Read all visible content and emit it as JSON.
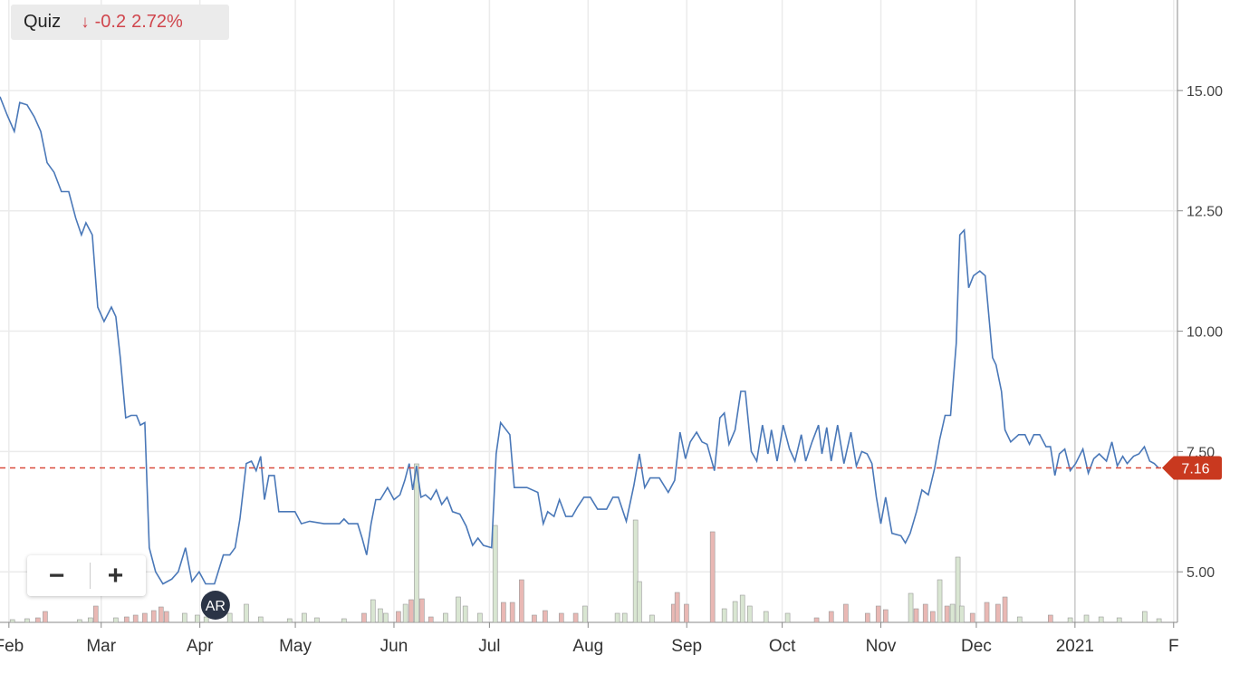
{
  "header": {
    "symbol": "Quiz",
    "change": "-0.2",
    "change_pct": "2.72%"
  },
  "zoom_controls": {
    "out": "−",
    "in": "+"
  },
  "chart_data": {
    "type": "line",
    "color": "#4a78b8",
    "grid": true,
    "xlim": [
      -2.8,
      367.2
    ],
    "xticks": [
      {
        "value": 0,
        "label": "Feb"
      },
      {
        "value": 29,
        "label": "Mar"
      },
      {
        "value": 60,
        "label": "Apr"
      },
      {
        "value": 90,
        "label": "May"
      },
      {
        "value": 121,
        "label": "Jun"
      },
      {
        "value": 151,
        "label": "Jul"
      },
      {
        "value": 182,
        "label": "Aug"
      },
      {
        "value": 213,
        "label": "Sep"
      },
      {
        "value": 243,
        "label": "Oct"
      },
      {
        "value": 274,
        "label": "Nov"
      },
      {
        "value": 304,
        "label": "Dec"
      },
      {
        "value": 335,
        "label": "2021"
      },
      {
        "value": 366,
        "label": "F"
      }
    ],
    "ylim": [
      3.95,
      16.88
    ],
    "yticks": [
      {
        "value": 5,
        "label": "5.00"
      },
      {
        "value": 7.5,
        "label": "7.50"
      },
      {
        "value": 10,
        "label": "10.00"
      },
      {
        "value": 12.5,
        "label": "12.50"
      },
      {
        "value": 15,
        "label": "15.00"
      }
    ],
    "x": [
      -2.8,
      -0.6,
      1.7,
      3.4,
      5.7,
      8,
      10,
      12,
      14.2,
      16.5,
      18.8,
      21,
      22.8,
      24.2,
      26.2,
      27.9,
      29.9,
      32.2,
      33.6,
      35,
      36.7,
      38.4,
      40.1,
      41.3,
      42.7,
      44.1,
      46.1,
      48.4,
      51.2,
      53.2,
      55.5,
      57.5,
      59.8,
      61.8,
      64.6,
      67.4,
      69.4,
      71.1,
      72.6,
      74.6,
      76.2,
      77.7,
      79.1,
      80.3,
      81.7,
      83.4,
      84.8,
      89.9,
      91.9,
      94.5,
      99,
      103.9,
      105.3,
      106.7,
      109.6,
      111,
      112.4,
      113.8,
      115.3,
      116.7,
      119,
      121,
      122.9,
      124.4,
      125.8,
      126.9,
      128.1,
      129.5,
      130.9,
      132.6,
      134.3,
      136,
      137.7,
      139.4,
      141.7,
      143.7,
      145.7,
      147.4,
      149.1,
      151.7,
      153.1,
      154.5,
      157.4,
      158.8,
      162.8,
      166.2,
      167.9,
      169.3,
      171.3,
      173,
      175,
      177,
      178.7,
      180.7,
      182.7,
      185,
      187.8,
      189.8,
      191.5,
      194,
      196.4,
      198.1,
      199.8,
      201.5,
      204.4,
      207.2,
      209.2,
      210.9,
      212.6,
      214.1,
      216.1,
      217.8,
      219.4,
      221.7,
      223.4,
      224.8,
      226.3,
      228.2,
      230,
      231.4,
      233.3,
      235,
      236.8,
      238.5,
      239.6,
      241.4,
      243.3,
      245.3,
      247,
      249,
      250.4,
      252.4,
      254.4,
      255.5,
      257,
      258.4,
      260.4,
      262.4,
      264.6,
      266.3,
      268,
      269.7,
      271.2,
      272.6,
      274,
      275.5,
      277.5,
      280.3,
      281.7,
      283.2,
      285.2,
      286.9,
      288.9,
      290.9,
      292.5,
      294.2,
      295.9,
      297.7,
      298.8,
      300.2,
      301.6,
      303.1,
      305.1,
      306.8,
      309.1,
      310.2,
      311.9,
      313,
      314.8,
      317.3,
      319.3,
      320.7,
      322.1,
      323.9,
      325.9,
      327.3,
      328.7,
      330.1,
      331.8,
      333.5,
      335.2,
      337.5,
      339.2,
      340.9,
      342.6,
      344.9,
      346.6,
      348.3,
      350,
      351.4,
      353.4,
      355.1,
      356.8,
      358.5,
      359.9,
      361.4
    ],
    "values": [
      14.87,
      14.5,
      14.15,
      14.75,
      14.7,
      14.45,
      14.15,
      13.5,
      13.3,
      12.9,
      12.9,
      12.35,
      12.0,
      12.25,
      12.0,
      10.5,
      10.2,
      10.5,
      10.3,
      9.45,
      8.2,
      8.25,
      8.25,
      8.05,
      8.1,
      5.5,
      5.0,
      4.75,
      4.85,
      5.0,
      5.5,
      4.8,
      5.0,
      4.75,
      4.75,
      5.35,
      5.35,
      5.5,
      6.1,
      7.25,
      7.3,
      7.1,
      7.4,
      6.5,
      7.0,
      7.0,
      6.25,
      6.25,
      6.0,
      6.05,
      6.0,
      6.0,
      6.1,
      6.0,
      6.0,
      5.7,
      5.35,
      6.0,
      6.5,
      6.5,
      6.75,
      6.5,
      6.6,
      6.9,
      7.25,
      6.7,
      7.2,
      6.55,
      6.6,
      6.5,
      6.7,
      6.4,
      6.55,
      6.25,
      6.2,
      5.95,
      5.55,
      5.7,
      5.55,
      5.5,
      7.45,
      8.1,
      7.85,
      6.75,
      6.75,
      6.65,
      6.0,
      6.25,
      6.15,
      6.5,
      6.15,
      6.15,
      6.35,
      6.55,
      6.55,
      6.3,
      6.3,
      6.55,
      6.55,
      6.05,
      6.8,
      7.45,
      6.75,
      6.95,
      6.95,
      6.65,
      6.9,
      7.9,
      7.35,
      7.7,
      7.9,
      7.7,
      7.65,
      7.1,
      8.2,
      8.3,
      7.65,
      7.95,
      8.75,
      8.75,
      7.5,
      7.3,
      8.05,
      7.45,
      7.95,
      7.3,
      8.05,
      7.55,
      7.3,
      7.85,
      7.3,
      7.7,
      8.05,
      7.45,
      8.0,
      7.3,
      8.05,
      7.25,
      7.9,
      7.2,
      7.5,
      7.45,
      7.25,
      6.55,
      6.0,
      6.55,
      5.8,
      5.75,
      5.6,
      5.8,
      6.25,
      6.7,
      6.6,
      7.15,
      7.75,
      8.25,
      8.25,
      9.75,
      12.0,
      12.1,
      10.9,
      11.15,
      11.25,
      11.15,
      9.45,
      9.3,
      8.75,
      7.95,
      7.7,
      7.85,
      7.85,
      7.65,
      7.85,
      7.85,
      7.6,
      7.6,
      7.0,
      7.45,
      7.55,
      7.1,
      7.25,
      7.55,
      7.05,
      7.35,
      7.45,
      7.3,
      7.7,
      7.2,
      7.4,
      7.25,
      7.4,
      7.45,
      7.6,
      7.3,
      7.25,
      7.15
    ],
    "y2lim": [
      0,
      68.7
    ],
    "volume": {
      "axis": "y2",
      "x": [
        1.1,
        5.7,
        9.1,
        11.4,
        22.2,
        25.6,
        27.3,
        33.6,
        37,
        39.8,
        42.7,
        45.5,
        47.8,
        49.5,
        55.2,
        59.2,
        62,
        69.4,
        74.6,
        79.1,
        88.2,
        92.8,
        96.8,
        105.3,
        111.6,
        114.4,
        116.7,
        118.4,
        122.4,
        124.6,
        126.4,
        128.1,
        129.8,
        132.6,
        137.2,
        141.2,
        143.4,
        148,
        152.8,
        155.4,
        158.2,
        161.1,
        165.1,
        168.5,
        173.6,
        178.1,
        181,
        191.2,
        193.5,
        196.9,
        198.1,
        202.1,
        208.9,
        210,
        212.9,
        221.1,
        224.8,
        228.2,
        230.5,
        232.8,
        237.9,
        244.7,
        253.8,
        258.4,
        263,
        269.8,
        273.2,
        275.5,
        283.4,
        285.1,
        288,
        290.3,
        292.5,
        294.8,
        296.5,
        298.2,
        299.4,
        302.8,
        307.3,
        310.8,
        313,
        317.6,
        327.3,
        333.5,
        338.6,
        343.2,
        348.9,
        356.9,
        361.4
      ],
      "values": [
        0.3,
        0.4,
        0.5,
        1.2,
        0.3,
        0.5,
        1.8,
        0.5,
        0.6,
        0.8,
        1.0,
        1.3,
        1.7,
        1.2,
        1.0,
        0.8,
        0.6,
        1.0,
        2.0,
        0.6,
        0.4,
        1.0,
        0.5,
        0.4,
        1.0,
        2.5,
        1.5,
        1.0,
        1.2,
        2.0,
        2.5,
        17.5,
        2.6,
        0.6,
        1.0,
        2.8,
        1.8,
        1.0,
        10.7,
        2.2,
        2.2,
        4.7,
        0.8,
        1.3,
        1.0,
        1.0,
        1.8,
        1.0,
        1.0,
        11.3,
        4.5,
        0.8,
        2.0,
        3.3,
        2.0,
        10.0,
        1.5,
        2.3,
        3.0,
        1.8,
        1.2,
        1.0,
        0.5,
        1.2,
        2.0,
        1.0,
        1.8,
        1.4,
        3.2,
        1.5,
        2.0,
        1.2,
        4.7,
        1.8,
        2.0,
        7.2,
        1.8,
        1.0,
        2.2,
        2.0,
        2.8,
        0.6,
        0.8,
        0.5,
        0.8,
        0.6,
        0.5,
        1.2,
        0.4
      ],
      "colors": [
        "#d9e6d2",
        "#d9e6d2",
        "#e9b8b4",
        "#e9b8b4",
        "#d9e6d2",
        "#d9e6d2",
        "#e9b8b4",
        "#d9e6d2",
        "#e9b8b4",
        "#e9b8b4",
        "#e9b8b4",
        "#e9b8b4",
        "#e9b8b4",
        "#e9b8b4",
        "#d9e6d2",
        "#d9e6d2",
        "#d9e6d2",
        "#d9e6d2",
        "#d9e6d2",
        "#d9e6d2",
        "#d9e6d2",
        "#d9e6d2",
        "#d9e6d2",
        "#d9e6d2",
        "#e9b8b4",
        "#d9e6d2",
        "#d9e6d2",
        "#d9e6d2",
        "#e9b8b4",
        "#d9e6d2",
        "#e9b8b4",
        "#d9e6d2",
        "#e9b8b4",
        "#e9b8b4",
        "#d9e6d2",
        "#d9e6d2",
        "#d9e6d2",
        "#d9e6d2",
        "#d9e6d2",
        "#e9b8b4",
        "#e9b8b4",
        "#e9b8b4",
        "#e9b8b4",
        "#e9b8b4",
        "#e9b8b4",
        "#e9b8b4",
        "#d9e6d2",
        "#d9e6d2",
        "#d9e6d2",
        "#d9e6d2",
        "#d9e6d2",
        "#d9e6d2",
        "#e9b8b4",
        "#e9b8b4",
        "#e9b8b4",
        "#e9b8b4",
        "#d9e6d2",
        "#d9e6d2",
        "#d9e6d2",
        "#d9e6d2",
        "#d9e6d2",
        "#d9e6d2",
        "#e9b8b4",
        "#e9b8b4",
        "#e9b8b4",
        "#e9b8b4",
        "#e9b8b4",
        "#e9b8b4",
        "#d9e6d2",
        "#e9b8b4",
        "#e9b8b4",
        "#e9b8b4",
        "#d9e6d2",
        "#e9b8b4",
        "#d9e6d2",
        "#d9e6d2",
        "#d9e6d2",
        "#e9b8b4",
        "#e9b8b4",
        "#e9b8b4",
        "#e9b8b4",
        "#d9e6d2",
        "#e9b8b4",
        "#d9e6d2",
        "#d9e6d2",
        "#d9e6d2",
        "#d9e6d2",
        "#d9e6d2",
        "#d9e6d2"
      ]
    },
    "reference_line": {
      "value": 7.16,
      "color": "#d94c3d"
    },
    "event_marker": {
      "x": 64.9,
      "label": "AR"
    }
  }
}
